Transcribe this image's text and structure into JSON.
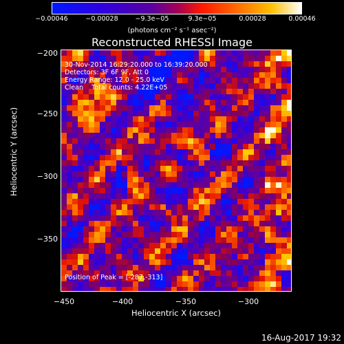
{
  "colorbar": {
    "ticks": [
      "−0.00046",
      "−0.00028",
      "−9.3e−05",
      "9.3e−05",
      "0.00028",
      "0.00046"
    ],
    "units_line": "(photons cm⁻² s⁻¹ asec⁻²)",
    "colormap": [
      "#0010ff",
      "#3a00d0",
      "#6a00a8",
      "#ff2000",
      "#ff8000",
      "#ffd000",
      "#ffffff"
    ]
  },
  "title": "Reconstructed RHESSI Image",
  "info": {
    "time_range": "30-Nov-2014 16:29:20.000 to 16:39:20.000",
    "detectors": "Detectors: 3F 6F 9F, Att 0",
    "energy": "Energy Range: 12.0 - 25.0 keV",
    "method": "Clean    Total counts: 4.22E+05",
    "peak": "Position of Peak = [-287,-313]"
  },
  "axes": {
    "xlabel": "Heliocentric X (arcsec)",
    "ylabel": "Heliocentric Y (arcsec)",
    "xticks": [
      "−450",
      "−400",
      "−350",
      "−300"
    ],
    "yticks": [
      "−200",
      "−250",
      "−300",
      "−350"
    ]
  },
  "footer": {
    "date": "16-Aug-2017 19:32"
  }
}
